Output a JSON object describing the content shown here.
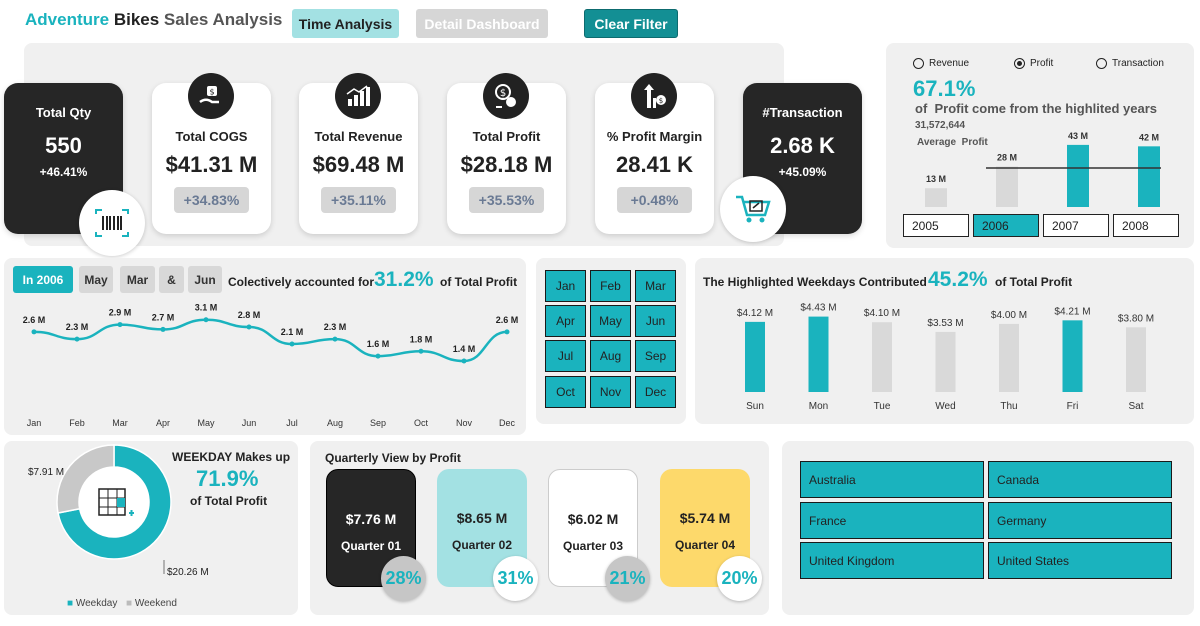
{
  "header": {
    "title_a": "Adventure",
    "title_b": "Bikes",
    "title_c": "Sales Analysis",
    "btn_time": "Time Analysis",
    "btn_detail": "Detail Dashboard",
    "btn_clear": "Clear Filter"
  },
  "kpis": {
    "qty": {
      "label": "Total Qty",
      "value": "550",
      "change": "+46.41%"
    },
    "cogs": {
      "label": "Total COGS",
      "value": "$41.31 M",
      "change": "+34.83%"
    },
    "revenue": {
      "label": "Total Revenue",
      "value": "$69.48 M",
      "change": "+35.11%"
    },
    "profit": {
      "label": "Total Profit",
      "value": "$28.18 M",
      "change": "+35.53%"
    },
    "margin": {
      "label": "% Profit Margin",
      "value": "28.41 K",
      "change": "+0.48%"
    },
    "transaction": {
      "label": "#Transaction",
      "value": "2.68 K",
      "change": "+45.09%"
    }
  },
  "yearly": {
    "radios": [
      "Revenue",
      "Profit",
      "Transaction"
    ],
    "selected": "Profit",
    "pct": "67.1%",
    "sentence": "of  Profit come from the highlited years",
    "avg_value": "31,572,644",
    "avg_label": "Average  Profit",
    "bar_labels": [
      "13 M",
      "28 M",
      "43 M",
      "42 M"
    ],
    "years": [
      "2005",
      "2006",
      "2007",
      "2008"
    ],
    "selected_year": "2006"
  },
  "monthly": {
    "chips": [
      "In 2006",
      "May",
      "Mar",
      "&",
      "Jun"
    ],
    "text": "Colectively accounted for",
    "pct": "31.2%",
    "suffix": "of Total Profit"
  },
  "months": [
    "Jan",
    "Feb",
    "Mar",
    "Apr",
    "May",
    "Jun",
    "Jul",
    "Aug",
    "Sep",
    "Oct",
    "Nov",
    "Dec"
  ],
  "weekday": {
    "text": "The Highlighted Weekdays Contributed",
    "pct": "45.2%",
    "suffix": "of Total Profit"
  },
  "donut": {
    "title": "WEEKDAY Makes up",
    "pct": "71.9%",
    "suffix": "of Total Profit",
    "weekend_label": "$7.91 M",
    "weekday_label": "$20.26 M",
    "legend": [
      "Weekday",
      "Weekend"
    ]
  },
  "quarterly": {
    "title": "Quarterly View by Profit",
    "cards": [
      {
        "value": "$7.76 M",
        "label": "Quarter 01",
        "pct": "28%"
      },
      {
        "value": "$8.65 M",
        "label": "Quarter 02",
        "pct": "31%"
      },
      {
        "value": "$6.02 M",
        "label": "Quarter 03",
        "pct": "21%"
      },
      {
        "value": "$5.74 M",
        "label": "Quarter 04",
        "pct": "20%"
      }
    ]
  },
  "countries": [
    "Australia",
    "Canada",
    "France",
    "Germany",
    "United Kingdom",
    "United States"
  ],
  "colors": {
    "accent": "#1ab3be",
    "dark": "#262626",
    "gray": "#d6d6d6",
    "yellow": "#fdd96b",
    "lightteal": "#a3e1e3"
  },
  "chart_data": [
    {
      "type": "bar",
      "categories": [
        "2005",
        "2006",
        "2007",
        "2008"
      ],
      "values": [
        13,
        28,
        43,
        42
      ],
      "value_labels": [
        "13 M",
        "28 M",
        "43 M",
        "42 M"
      ],
      "highlighted": [
        "2007",
        "2008"
      ],
      "ylim": [
        0,
        45
      ]
    },
    {
      "type": "line",
      "categories": [
        "Jan",
        "Feb",
        "Mar",
        "Apr",
        "May",
        "Jun",
        "Jul",
        "Aug",
        "Sep",
        "Oct",
        "Nov",
        "Dec"
      ],
      "values": [
        2.6,
        2.3,
        2.9,
        2.7,
        3.1,
        2.8,
        2.1,
        2.3,
        1.6,
        1.8,
        1.4,
        2.6
      ],
      "value_labels": [
        "2.6 M",
        "2.3 M",
        "2.9 M",
        "2.7 M",
        "3.1 M",
        "2.8 M",
        "2.1 M",
        "2.3 M",
        "1.6 M",
        "1.8 M",
        "1.4 M",
        "2.6 M"
      ],
      "ylim": [
        0,
        3.5
      ]
    },
    {
      "type": "bar",
      "categories": [
        "Sun",
        "Mon",
        "Tue",
        "Wed",
        "Thu",
        "Fri",
        "Sat"
      ],
      "values": [
        4.12,
        4.43,
        4.1,
        3.53,
        4.0,
        4.21,
        3.8
      ],
      "value_labels": [
        "$4.12 M",
        "$4.43 M",
        "$4.10 M",
        "$3.53 M",
        "$4.00 M",
        "$4.21 M",
        "$3.80 M"
      ],
      "highlighted": [
        "Sun",
        "Mon",
        "Fri"
      ],
      "ylim": [
        0,
        4.7
      ]
    },
    {
      "type": "pie",
      "categories": [
        "Weekday",
        "Weekend"
      ],
      "values": [
        20.26,
        7.91
      ]
    }
  ]
}
